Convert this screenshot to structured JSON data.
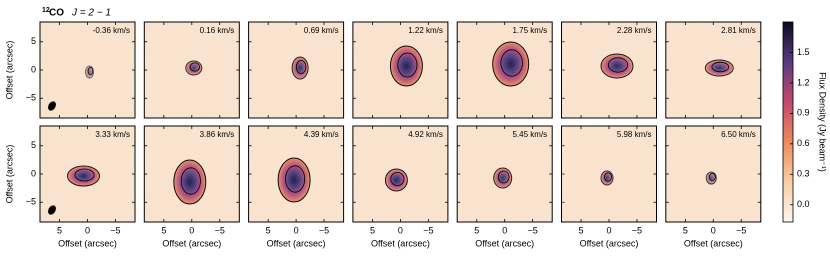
{
  "chart_data": {
    "type": "channel-map",
    "title": {
      "isotope": "12",
      "molecule": "CO",
      "transition": "J = 2 − 1"
    },
    "panels": [
      "-0.36 km/s",
      "0.16 km/s",
      "0.69 km/s",
      "1.22 km/s",
      "1.75 km/s",
      "2.28 km/s",
      "2.81 km/s",
      "3.33 km/s",
      "3.86 km/s",
      "4.39 km/s",
      "4.92 km/s",
      "5.45 km/s",
      "5.98 km/s",
      "6.50 km/s"
    ],
    "columns": 7,
    "x_label": "Offset (arcsec)",
    "y_label": "Offset (arcsec)",
    "xlim": [
      8.5,
      -8.5
    ],
    "ylim": [
      -8.5,
      8.5
    ],
    "xticks": [
      5,
      0,
      {
        "value": -5,
        "label": "−5"
      }
    ],
    "yticks": [
      5,
      0,
      {
        "value": -5,
        "label": "−5"
      }
    ],
    "colorbar": {
      "label": "Flux Density (Jy beam⁻¹)",
      "lim": [
        -0.17,
        1.8
      ],
      "ticks": [
        {
          "value": 0,
          "label": "0.0"
        },
        0.3,
        0.6,
        0.9,
        1.2,
        1.5
      ],
      "colors": [
        "#fdf6ee",
        "#f7cfa6",
        "#ec8a5e",
        "#c24a6e",
        "#5b3a80",
        "#0a0a24"
      ]
    }
  }
}
